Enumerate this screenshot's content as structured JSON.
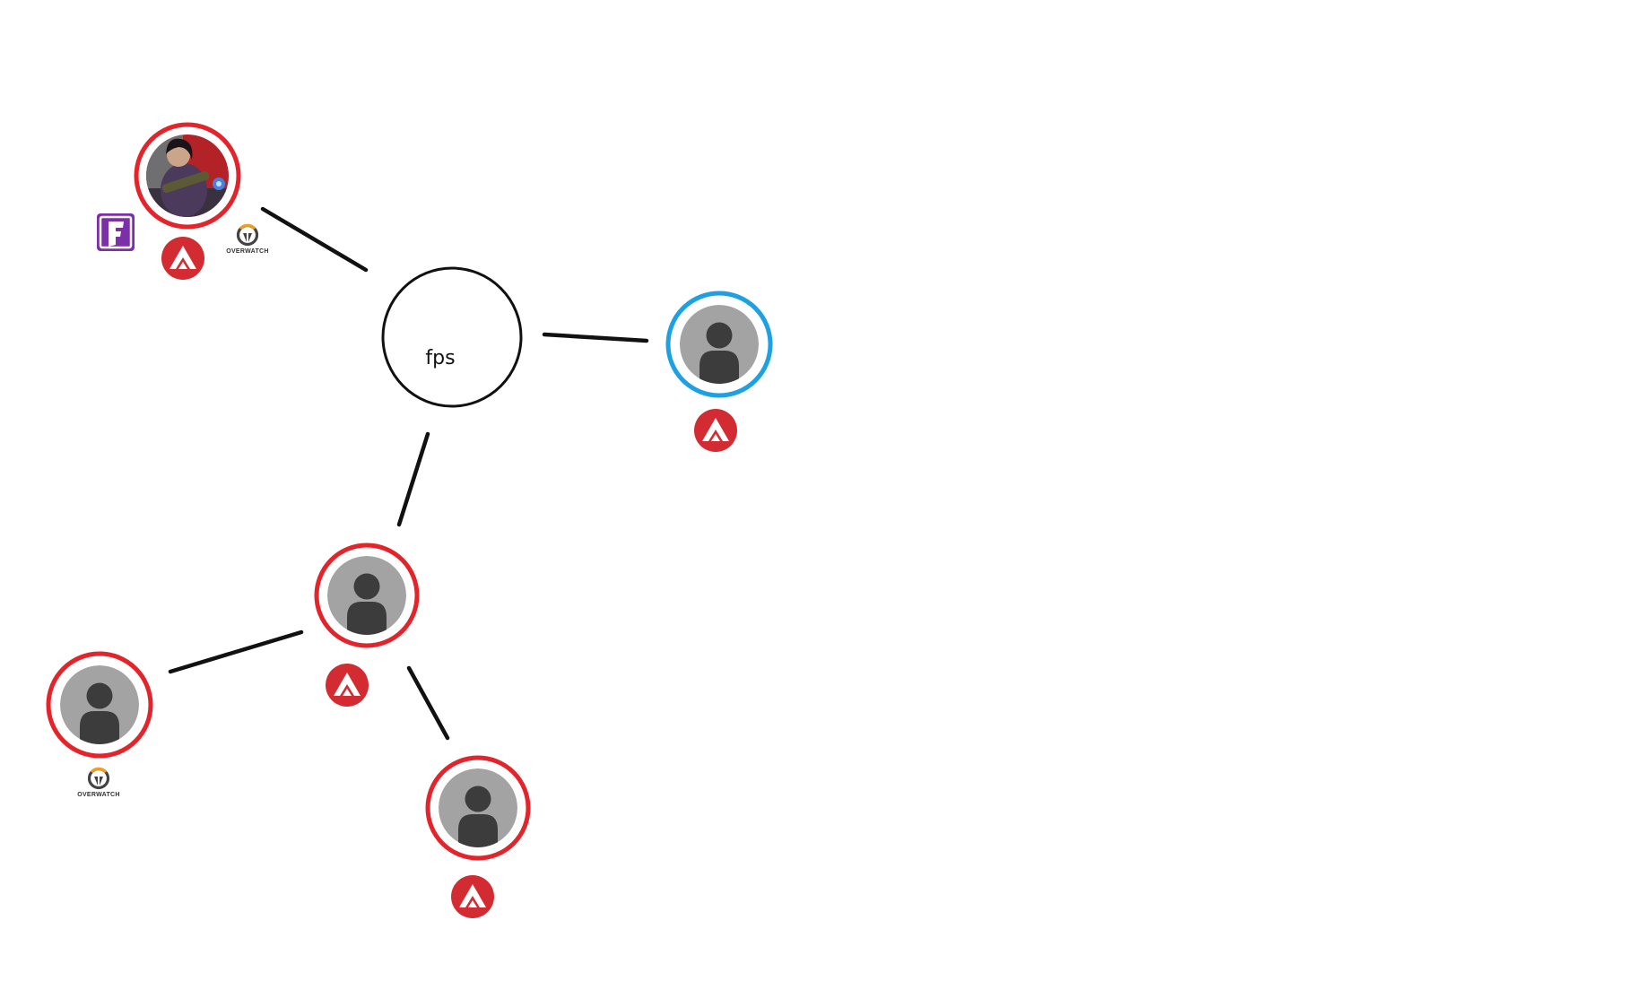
{
  "hub": {
    "label": "fps"
  },
  "colors": {
    "ring_red": "#e3242b",
    "ring_blue": "#1da1e2",
    "avatar_bg": "#a3a3a3",
    "avatar_figure": "#3c3c3c",
    "apex_red": "#d22c32",
    "fortnite_purple": "#7b2fa8",
    "overwatch_orange": "#f19e21",
    "edge": "#111111"
  },
  "players": [
    {
      "id": "player-main",
      "avatar": "profile-photo",
      "ring": "red",
      "games": [
        "fortnite-icon",
        "apex-legends-icon",
        "overwatch-icon"
      ]
    },
    {
      "id": "player-right",
      "avatar": "default-avatar",
      "ring": "blue",
      "games": [
        "apex-legends-icon"
      ]
    },
    {
      "id": "player-middle",
      "avatar": "default-avatar",
      "ring": "red",
      "games": [
        "apex-legends-icon"
      ]
    },
    {
      "id": "player-left",
      "avatar": "default-avatar",
      "ring": "red",
      "games": [
        "overwatch-icon"
      ]
    },
    {
      "id": "player-bottom",
      "avatar": "default-avatar",
      "ring": "red",
      "games": [
        "apex-legends-icon"
      ]
    }
  ],
  "overwatch_wordmark": "OVERWATCH"
}
